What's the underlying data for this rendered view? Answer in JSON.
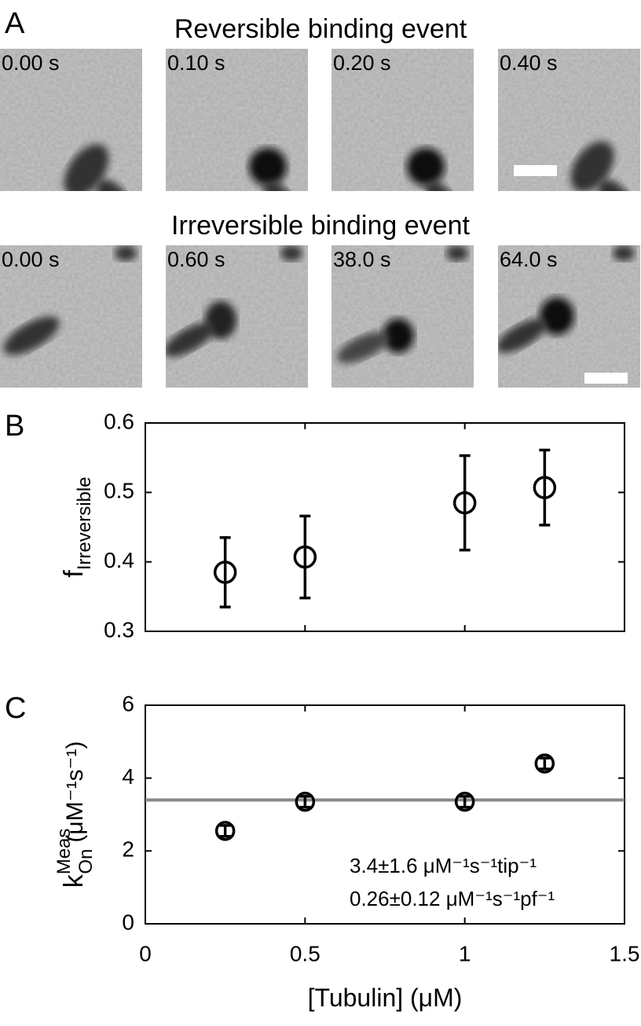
{
  "panel_a": {
    "label": "A",
    "rows": [
      {
        "title": "Reversible binding event",
        "times": [
          "0.00 s",
          "0.10 s",
          "0.20 s",
          "0.40 s"
        ]
      },
      {
        "title": "Irreversible binding event",
        "times": [
          "0.00 s",
          "0.60 s",
          "38.0 s",
          "64.0 s"
        ]
      }
    ]
  },
  "chart_data": [
    {
      "type": "scatter",
      "panel_label": "B",
      "ylabel": {
        "base": "f",
        "sub": "Irreversible"
      },
      "x": [
        0.25,
        0.5,
        1.0,
        1.25
      ],
      "values": [
        0.385,
        0.407,
        0.485,
        0.507
      ],
      "errors": [
        0.05,
        0.059,
        0.068,
        0.054
      ],
      "color": "#000000",
      "xlim": [
        0,
        1.5
      ],
      "xticks": [
        0,
        0.5,
        1,
        1.5
      ],
      "xtick_labels": false,
      "ylim": [
        0.3,
        0.6
      ],
      "yticks": [
        0.3,
        0.4,
        0.5,
        0.6
      ]
    },
    {
      "type": "scatter",
      "panel_label": "C",
      "ylabel": {
        "base": "k",
        "sup": "Meas",
        "sub": "On",
        "unit": "(μM⁻¹s⁻¹)"
      },
      "xlabel": "[Tubulin] (μM)",
      "x": [
        0.25,
        0.5,
        1.0,
        1.25
      ],
      "values": [
        2.55,
        3.35,
        3.35,
        4.4
      ],
      "errors": [
        0.15,
        0.15,
        0.15,
        0.15
      ],
      "color": "#000000",
      "fit_line": {
        "value": 3.4,
        "color": "#888888"
      },
      "annotations": [
        "3.4±1.6 μM⁻¹s⁻¹tip⁻¹",
        "0.26±0.12 μM⁻¹s⁻¹pf⁻¹"
      ],
      "xlim": [
        0,
        1.5
      ],
      "xticks": [
        0,
        0.5,
        1,
        1.5
      ],
      "xtick_labels": true,
      "ylim": [
        0,
        6
      ],
      "yticks": [
        0,
        2,
        4,
        6
      ]
    }
  ]
}
